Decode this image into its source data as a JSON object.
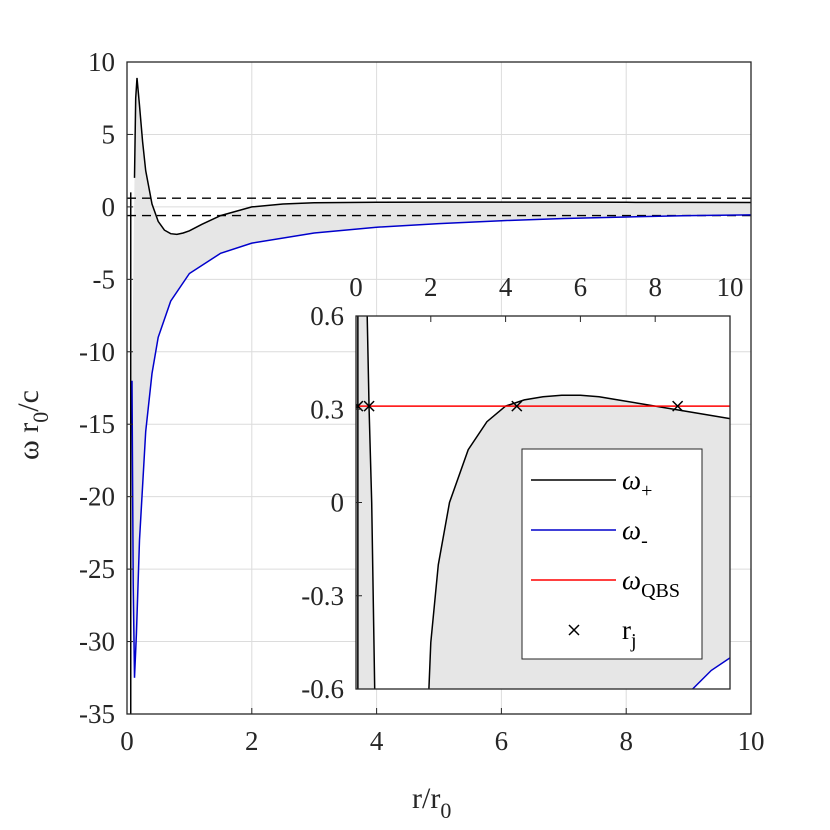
{
  "chart_data": [
    {
      "type": "line",
      "title": "",
      "xlabel": "r/r",
      "xlabel_sub": "0",
      "ylabel_parts": [
        "ω r",
        "0",
        "/c"
      ],
      "xlim": [
        0,
        10
      ],
      "ylim": [
        -35,
        10
      ],
      "xticks": [
        0,
        2,
        4,
        6,
        8,
        10
      ],
      "yticks": [
        10,
        5,
        0,
        -5,
        -10,
        -15,
        -20,
        -25,
        -30,
        -35
      ],
      "grid": true,
      "shaded_region": "between ω+ and ω-",
      "horizontal_dashed_lines": [
        0.6,
        -0.6
      ],
      "series": [
        {
          "name": "ω+",
          "color": "#000000",
          "x": [
            0.12,
            0.14,
            0.16,
            0.2,
            0.25,
            0.3,
            0.4,
            0.5,
            0.6,
            0.7,
            0.8,
            0.9,
            1.0,
            1.2,
            1.5,
            2.0,
            2.5,
            3.0,
            4.0,
            5.0,
            6.0,
            7.0,
            8.0,
            9.0,
            10.0
          ],
          "y": [
            2,
            7.5,
            8.9,
            7.0,
            4.5,
            2.5,
            0.2,
            -1.0,
            -1.6,
            -1.85,
            -1.9,
            -1.8,
            -1.65,
            -1.2,
            -0.6,
            0.0,
            0.2,
            0.28,
            0.32,
            0.33,
            0.33,
            0.33,
            0.32,
            0.31,
            0.3
          ]
        },
        {
          "name": "ω-",
          "color": "#0000cc",
          "x": [
            0.08,
            0.1,
            0.12,
            0.15,
            0.2,
            0.3,
            0.4,
            0.5,
            0.7,
            1.0,
            1.5,
            2.0,
            3.0,
            4.0,
            5.0,
            6.0,
            7.0,
            8.0,
            9.0,
            10.0
          ],
          "y": [
            -12,
            -26,
            -32.5,
            -29.5,
            -23,
            -15.5,
            -11.5,
            -9.0,
            -6.5,
            -4.6,
            -3.2,
            -2.5,
            -1.8,
            -1.4,
            -1.15,
            -0.95,
            -0.8,
            -0.7,
            -0.6,
            -0.55
          ]
        }
      ]
    },
    {
      "type": "line",
      "title": "",
      "xlim": [
        0,
        10
      ],
      "ylim": [
        -0.6,
        0.6
      ],
      "xticks": [
        0,
        2,
        4,
        6,
        8,
        10
      ],
      "yticks": [
        0.6,
        0.3,
        0,
        -0.3,
        -0.6
      ],
      "ytick_labels": [
        "0.6",
        "0.3",
        "0",
        "-0.3",
        "-0.6"
      ],
      "xaxis_location": "top",
      "grid": false,
      "legend": {
        "placement": "bottom-right",
        "entries": [
          {
            "label": "ω",
            "sub": "+",
            "color": "#000000",
            "marker": "line"
          },
          {
            "label": "ω",
            "sub": "-",
            "color": "#0000cc",
            "marker": "line"
          },
          {
            "label": "ω",
            "sub": "QBS",
            "color": "#ff0000",
            "marker": "line"
          },
          {
            "label": "r",
            "sub": "j",
            "color": "#000000",
            "marker": "x"
          }
        ]
      },
      "series": [
        {
          "name": "ω+",
          "color": "#000000",
          "x": [
            1.95,
            2.0,
            2.2,
            2.5,
            3.0,
            3.5,
            4.0,
            4.5,
            5.0,
            5.5,
            6.0,
            6.5,
            7.0,
            7.5,
            8.0,
            8.5,
            9.0,
            9.5,
            10.0
          ],
          "y": [
            -0.6,
            -0.45,
            -0.2,
            0.0,
            0.17,
            0.26,
            0.31,
            0.33,
            0.34,
            0.345,
            0.345,
            0.34,
            0.33,
            0.32,
            0.31,
            0.3,
            0.29,
            0.28,
            0.27
          ]
        },
        {
          "name": "ω+ (spike)",
          "color": "#000000",
          "x": [
            0.3,
            0.35,
            0.42,
            0.5
          ],
          "y": [
            0.6,
            0.3,
            0.0,
            -0.6
          ]
        },
        {
          "name": "ω-",
          "color": "#0000cc",
          "x": [
            9.0,
            9.5,
            10.0
          ],
          "y": [
            -0.6,
            -0.54,
            -0.5
          ]
        },
        {
          "name": "ω QBS",
          "color": "#ff0000",
          "x": [
            0,
            10
          ],
          "y": [
            0.31,
            0.31
          ]
        },
        {
          "name": "r j",
          "color": "#000000",
          "marker": "x",
          "x": [
            0.05,
            0.35,
            4.3,
            8.6
          ],
          "y": [
            0.31,
            0.31,
            0.31,
            0.31
          ]
        }
      ]
    }
  ]
}
